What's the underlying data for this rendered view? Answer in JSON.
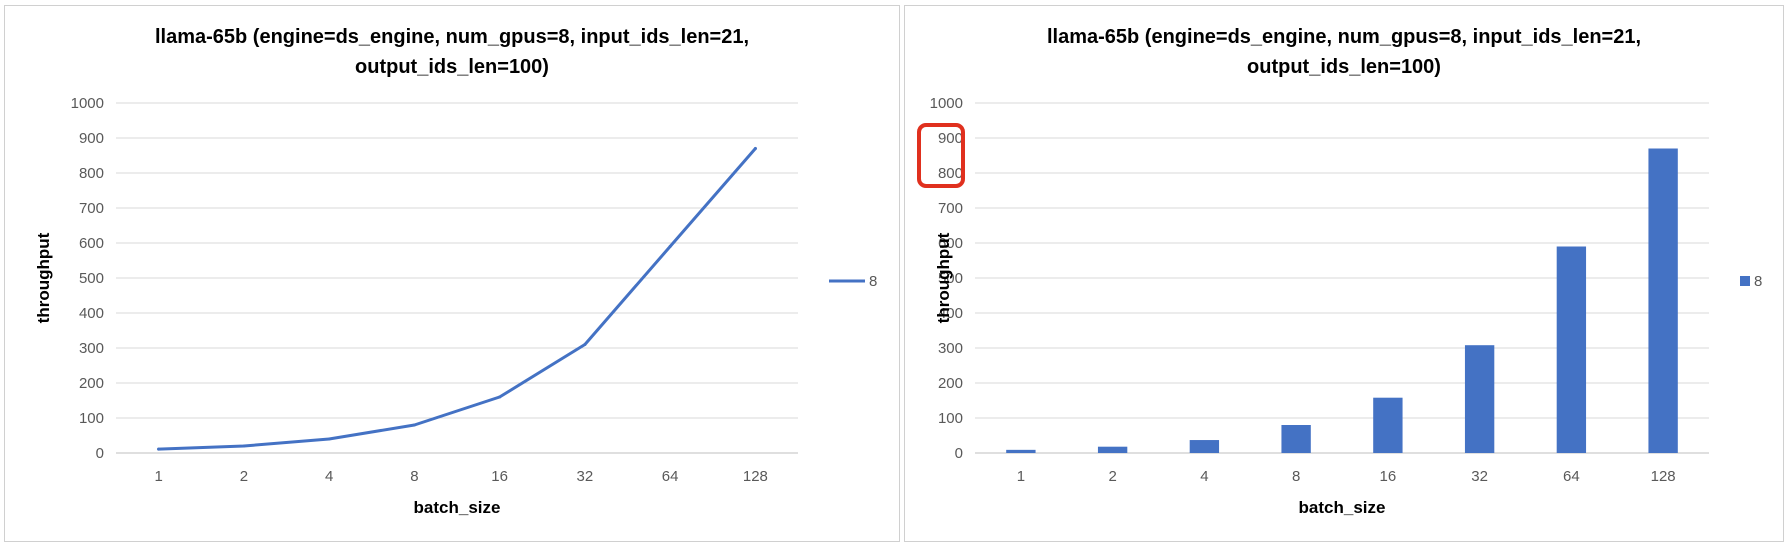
{
  "chart_data": [
    {
      "type": "line",
      "title_line1": "llama-65b (engine=ds_engine, num_gpus=8, input_ids_len=21,",
      "title_line2": "output_ids_len=100)",
      "xlabel": "batch_size",
      "ylabel": "throughput",
      "categories": [
        "1",
        "2",
        "4",
        "8",
        "16",
        "32",
        "64",
        "128"
      ],
      "yticks": [
        "0",
        "100",
        "200",
        "300",
        "400",
        "500",
        "600",
        "700",
        "800",
        "900",
        "1000"
      ],
      "ylim": [
        0,
        1000
      ],
      "grid": true,
      "legend_position": "right",
      "series": [
        {
          "name": "8",
          "color": "#4472C4",
          "values": [
            11,
            20,
            40,
            80,
            160,
            310,
            590,
            870
          ]
        }
      ]
    },
    {
      "type": "bar",
      "title_line1": "llama-65b (engine=ds_engine, num_gpus=8, input_ids_len=21,",
      "title_line2": "output_ids_len=100)",
      "xlabel": "batch_size",
      "ylabel": "throughput",
      "categories": [
        "1",
        "2",
        "4",
        "8",
        "16",
        "32",
        "64",
        "128"
      ],
      "yticks": [
        "0",
        "100",
        "200",
        "300",
        "400",
        "500",
        "600",
        "700",
        "800",
        "900",
        "1000"
      ],
      "ylim": [
        0,
        1000
      ],
      "grid": true,
      "legend_position": "right",
      "highlight": {
        "ticks": [
          "900",
          "800"
        ],
        "color": "#E0301E"
      },
      "series": [
        {
          "name": "8",
          "color": "#4472C4",
          "values": [
            9,
            18,
            37,
            80,
            158,
            308,
            590,
            870
          ]
        }
      ]
    }
  ]
}
